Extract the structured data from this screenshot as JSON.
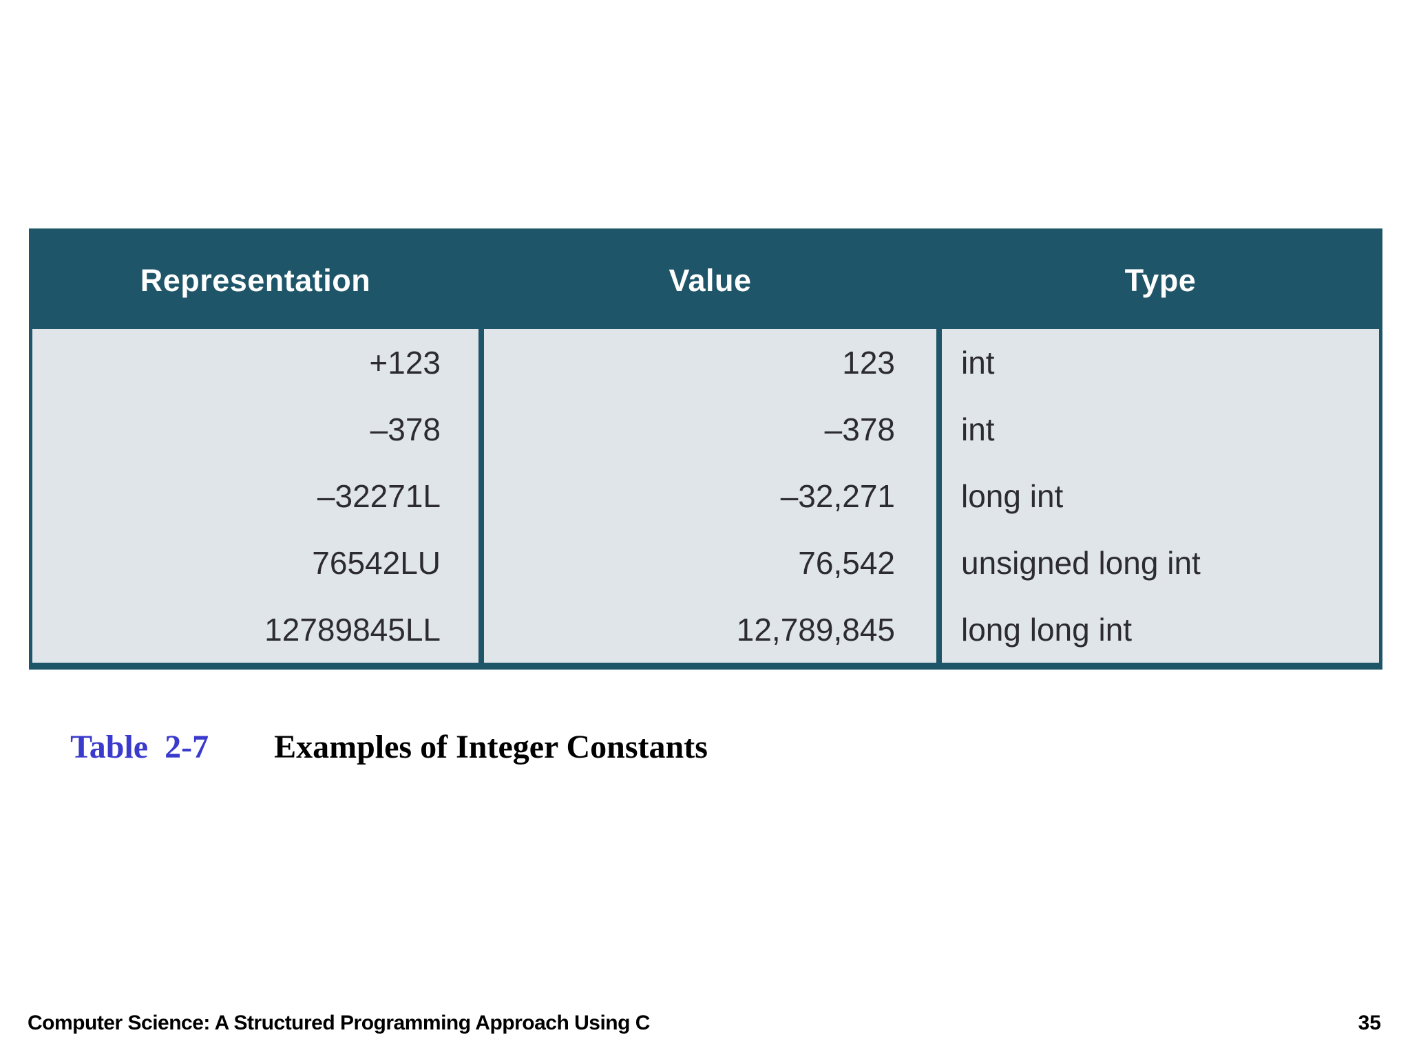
{
  "table": {
    "columns": [
      "Representation",
      "Value",
      "Type"
    ],
    "rows": [
      {
        "representation": "+123",
        "value": "123",
        "type": "int"
      },
      {
        "representation": "–378",
        "value": "–378",
        "type": "int"
      },
      {
        "representation": "–32271L",
        "value": "–32,271",
        "type": "long int"
      },
      {
        "representation": "76542LU",
        "value": "76,542",
        "type": "unsigned long int"
      },
      {
        "representation": "12789845LL",
        "value": "12,789,845",
        "type": "long long int"
      }
    ]
  },
  "caption": {
    "label": "Table  2-7",
    "title": "Examples of Integer Constants"
  },
  "footer": {
    "book_title": "Computer Science: A Structured Programming Approach Using C",
    "page_number": "35"
  },
  "colors": {
    "header_bg": "#1e5568",
    "body_bg": "#e0e5ea",
    "border": "#1e5568",
    "caption_label": "#3a3acd",
    "body_text": "#2b2b30"
  }
}
